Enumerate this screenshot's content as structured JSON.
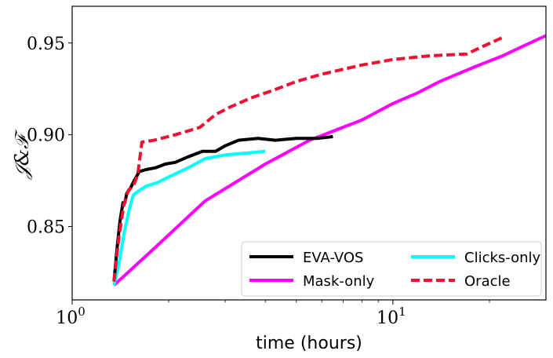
{
  "chart_data": {
    "type": "line",
    "xlabel": "time (hours)",
    "ylabel": "𝒥&ℱ",
    "xscale": "log",
    "xlim": [
      1.0,
      30.0
    ],
    "ylim": [
      0.81,
      0.97
    ],
    "xticks": [
      {
        "value": 1,
        "base": "10",
        "exp": "0"
      },
      {
        "value": 10,
        "base": "10",
        "exp": "1"
      }
    ],
    "yticks": [
      {
        "value": 0.85,
        "label": "0.85"
      },
      {
        "value": 0.9,
        "label": "0.90"
      },
      {
        "value": 0.95,
        "label": "0.95"
      }
    ],
    "grid": false,
    "legend": {
      "placement": "bottom-right",
      "columns": 2
    },
    "series": [
      {
        "name": "EVA-VOS",
        "color": "#000000",
        "dash": "solid",
        "x": [
          1.35,
          1.38,
          1.41,
          1.44,
          1.46,
          1.48,
          1.52,
          1.56,
          1.62,
          1.7,
          1.82,
          1.95,
          2.1,
          2.3,
          2.55,
          2.8,
          3.0,
          3.3,
          3.8,
          4.3,
          5.0,
          5.8,
          6.5
        ],
        "y": [
          0.82,
          0.838,
          0.853,
          0.863,
          0.863,
          0.868,
          0.871,
          0.875,
          0.88,
          0.881,
          0.882,
          0.884,
          0.885,
          0.888,
          0.891,
          0.891,
          0.894,
          0.897,
          0.898,
          0.897,
          0.898,
          0.898,
          0.899
        ]
      },
      {
        "name": "Mask-only",
        "color": "#ff00ff",
        "dash": "solid",
        "x": [
          1.35,
          1.8,
          2.6,
          4.0,
          5.5,
          8.0,
          10.0,
          12.0,
          14.0,
          18.0,
          22.0,
          26.0,
          30.0
        ],
        "y": [
          0.818,
          0.838,
          0.864,
          0.884,
          0.897,
          0.908,
          0.917,
          0.923,
          0.929,
          0.937,
          0.943,
          0.949,
          0.954
        ]
      },
      {
        "name": "Clicks-only",
        "color": "#00ffff",
        "dash": "solid",
        "x": [
          1.35,
          1.4,
          1.45,
          1.5,
          1.55,
          1.6,
          1.7,
          1.85,
          2.0,
          2.3,
          2.6,
          3.0,
          3.5,
          4.0
        ],
        "y": [
          0.818,
          0.83,
          0.846,
          0.858,
          0.867,
          0.869,
          0.872,
          0.874,
          0.877,
          0.882,
          0.887,
          0.889,
          0.89,
          0.891
        ]
      },
      {
        "name": "Oracle",
        "color": "#ee1133",
        "dash": "dashed",
        "x": [
          1.35,
          1.4,
          1.45,
          1.5,
          1.55,
          1.6,
          1.65,
          1.8,
          2.1,
          2.5,
          2.8,
          3.1,
          3.6,
          4.2,
          5.0,
          6.0,
          8.0,
          10.0,
          13.0,
          17.0,
          19.0,
          22.0
        ],
        "y": [
          0.82,
          0.845,
          0.862,
          0.87,
          0.872,
          0.878,
          0.896,
          0.897,
          0.9,
          0.904,
          0.911,
          0.915,
          0.92,
          0.924,
          0.929,
          0.933,
          0.938,
          0.941,
          0.943,
          0.944,
          0.948,
          0.953
        ]
      }
    ]
  }
}
